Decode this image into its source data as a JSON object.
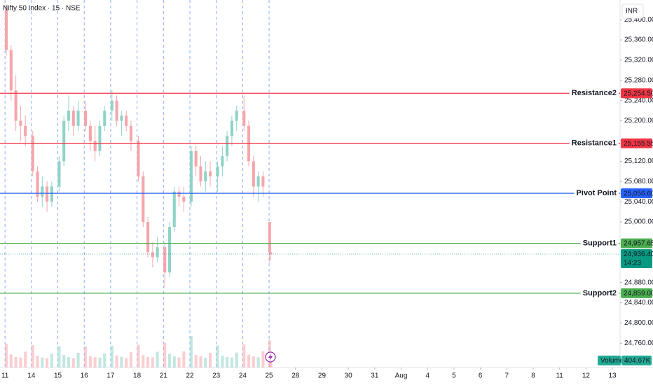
{
  "chart_data": {
    "type": "candlestick",
    "title": "Nifty 50 Index · 15 · NSE",
    "currency": "INR",
    "ylim": [
      24712,
      25439
    ],
    "yticks": [
      {
        "value": 25400,
        "label": "25,400.00"
      },
      {
        "value": 25360,
        "label": "25,360.00"
      },
      {
        "value": 25320,
        "label": "25,320.00"
      },
      {
        "value": 25280,
        "label": "25,280.00"
      },
      {
        "value": 25240,
        "label": "25,240.00"
      },
      {
        "value": 25200,
        "label": "25,200.00"
      },
      {
        "value": 25120,
        "label": "25,120.00"
      },
      {
        "value": 25080,
        "label": "25,080.00"
      },
      {
        "value": 25040,
        "label": "25,040.00"
      },
      {
        "value": 25000,
        "label": "25,000.00"
      },
      {
        "value": 24880,
        "label": "24,880.00"
      },
      {
        "value": 24840,
        "label": "24,840.00"
      },
      {
        "value": 24800,
        "label": "24,800.00"
      },
      {
        "value": 24760,
        "label": "24,760.00"
      }
    ],
    "xlim": [
      -0.19,
      23.29
    ],
    "xticks": [
      {
        "value": 0,
        "label": "11"
      },
      {
        "value": 1,
        "label": "14"
      },
      {
        "value": 2,
        "label": "15"
      },
      {
        "value": 3,
        "label": "16"
      },
      {
        "value": 4,
        "label": "17"
      },
      {
        "value": 5,
        "label": "18"
      },
      {
        "value": 6,
        "label": "21"
      },
      {
        "value": 7,
        "label": "22"
      },
      {
        "value": 8,
        "label": "23"
      },
      {
        "value": 9,
        "label": "24"
      },
      {
        "value": 10,
        "label": "25"
      },
      {
        "value": 11,
        "label": "28"
      },
      {
        "value": 12,
        "label": "29"
      },
      {
        "value": 13,
        "label": "30"
      },
      {
        "value": 14,
        "label": "31"
      },
      {
        "value": 15,
        "label": "Aug"
      },
      {
        "value": 16,
        "label": "4"
      },
      {
        "value": 17,
        "label": "5"
      },
      {
        "value": 18,
        "label": "6"
      },
      {
        "value": 19,
        "label": "7"
      },
      {
        "value": 20,
        "label": "8"
      },
      {
        "value": 21,
        "label": "11"
      },
      {
        "value": 22,
        "label": "12"
      },
      {
        "value": 23,
        "label": "13"
      }
    ],
    "up_color": "#8fd3c8",
    "down_color": "#f5a6ab",
    "candles": {
      "x": [
        0.05,
        0.23,
        0.41,
        0.59,
        0.77,
        1.05,
        1.23,
        1.41,
        1.59,
        1.77,
        2.05,
        2.23,
        2.41,
        2.59,
        2.77,
        3.05,
        3.23,
        3.41,
        3.59,
        3.77,
        4.05,
        4.23,
        4.41,
        4.59,
        4.77,
        5.05,
        5.23,
        5.41,
        5.59,
        5.77,
        6.05,
        6.23,
        6.41,
        6.59,
        6.77,
        7.05,
        7.23,
        7.41,
        7.59,
        7.77,
        8.05,
        8.23,
        8.41,
        8.59,
        8.77,
        9.05,
        9.23,
        9.41,
        9.59,
        9.77,
        10.02,
        10.06
      ],
      "open": [
        25420,
        25340,
        25260,
        25200,
        25190,
        25170,
        25100,
        25050,
        25070,
        25040,
        25070,
        25120,
        25200,
        25220,
        25190,
        25220,
        25190,
        25160,
        25140,
        25190,
        25220,
        25240,
        25200,
        25210,
        25190,
        25160,
        25090,
        25000,
        24940,
        24930,
        24950,
        24900,
        24990,
        25060,
        25050,
        25040,
        25140,
        25110,
        25080,
        25100,
        25090,
        25110,
        25130,
        25170,
        25200,
        25220,
        25190,
        25120,
        25070,
        25090,
        25000,
        24940
      ],
      "high": [
        25430,
        25350,
        25290,
        25230,
        25210,
        25180,
        25110,
        25090,
        25080,
        25080,
        25130,
        25210,
        25250,
        25230,
        25240,
        25240,
        25200,
        25190,
        25200,
        25230,
        25260,
        25250,
        25220,
        25220,
        25200,
        25170,
        25100,
        25010,
        24960,
        24970,
        24960,
        25000,
        25070,
        25070,
        25070,
        25150,
        25150,
        25130,
        25120,
        25120,
        25120,
        25150,
        25180,
        25210,
        25230,
        25250,
        25200,
        25130,
        25100,
        25100,
        25000,
        24960
      ],
      "low": [
        25330,
        25240,
        25180,
        25160,
        25150,
        25090,
        25040,
        25030,
        25020,
        25030,
        25060,
        25110,
        25180,
        25170,
        25180,
        25180,
        25140,
        25120,
        25130,
        25180,
        25200,
        25190,
        25170,
        25180,
        25140,
        25080,
        24990,
        24930,
        24910,
        24920,
        24870,
        24890,
        24980,
        25030,
        25020,
        25030,
        25090,
        25070,
        25060,
        25070,
        25060,
        25090,
        25120,
        25150,
        25180,
        25180,
        25110,
        25050,
        25040,
        25050,
        24920,
        24925
      ],
      "close": [
        25340,
        25260,
        25200,
        25190,
        25170,
        25100,
        25050,
        25070,
        25040,
        25070,
        25120,
        25200,
        25220,
        25190,
        25220,
        25190,
        25160,
        25140,
        25190,
        25220,
        25240,
        25200,
        25210,
        25190,
        25160,
        25090,
        25000,
        24940,
        24930,
        24950,
        24900,
        24990,
        25060,
        25050,
        25040,
        25140,
        25110,
        25080,
        25100,
        25090,
        25110,
        25130,
        25170,
        25200,
        25220,
        25190,
        25120,
        25070,
        25090,
        25070,
        24940,
        24936.4
      ],
      "volume": [
        900000,
        500000,
        400000,
        380000,
        600000,
        850000,
        450000,
        380000,
        360000,
        520000,
        820000,
        480000,
        400000,
        350000,
        560000,
        800000,
        430000,
        390000,
        370000,
        540000,
        830000,
        460000,
        410000,
        360000,
        580000,
        860000,
        470000,
        400000,
        390000,
        600000,
        950000,
        520000,
        430000,
        380000,
        610000,
        1200000,
        480000,
        420000,
        370000,
        560000,
        840000,
        450000,
        400000,
        380000,
        570000,
        880000,
        490000,
        420000,
        390000,
        620000,
        1050000,
        404670
      ]
    },
    "levels": [
      {
        "name": "Resistance2",
        "value": 25254.5,
        "value_label": "25,254.50",
        "color": "#f23645"
      },
      {
        "name": "Resistance1",
        "value": 25155.55,
        "value_label": "25,155.55",
        "color": "#f23645"
      },
      {
        "name": "Pivot Point",
        "value": 25056.6,
        "value_label": "25,056.60",
        "color": "#2962ff"
      },
      {
        "name": "Support1",
        "value": 24957.65,
        "value_label": "24,957.65",
        "color": "#4caf50"
      },
      {
        "name": "Support2",
        "value": 24859,
        "value_label": "24,859.00",
        "color": "#4caf50"
      }
    ],
    "last_price": {
      "value": 24936.4,
      "value_label": "24,936.40",
      "countdown": "14:23",
      "color": "#089981"
    },
    "volume_legend": {
      "name": "Volume",
      "value": 404670,
      "value_label": "404.67K",
      "color": "#22ab94"
    }
  }
}
